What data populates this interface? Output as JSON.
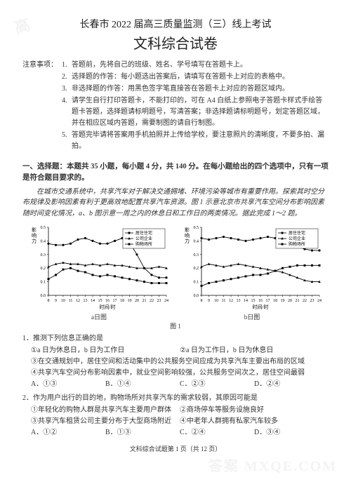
{
  "watermark_tl": "高",
  "watermark_br": "答案 MXQE.COM",
  "title_line1": "长春市 2022 届高三质量监测（三）线上考试",
  "title_line2": "文科综合试卷",
  "notice_label": "注意事项：",
  "notice_items": [
    "答题前，先将自己的班级、姓名、学号填写在答题卡上。",
    "选择题的作答：每小题选出答案后，请填写在答题卡上对应的表格中。",
    "非选择题的作答：用黑色签字笔直接答在答题卡上对应的答题区域内。",
    "请学生自行打印答题卡，不能打印的，可在 A4 白纸上参照电子答题卡样式手绘答题卡答题，选择题请标明题号，写清答案；非选择题请标明题号，划定答题区域，并在相应区域内答题，需要制图的请自行制图。",
    "答题完毕请将答案用手机拍照并上传给学校，要注意照片的清晰度，不要多拍、漏拍。"
  ],
  "section1_head": "一、选择题：本题共 35 小题，每小题 4 分，共 140 分。在每小题给出的四个选项中，只有一项是符合题目要求的。",
  "passage": "在城市交通系统中，共享汽车对于解决交通拥堵、环境污染等城市有重要作用。探索其时空分布规律及影响因素有利于更高效地配置共享汽车资源。图 1 示意北京市共享汽车空间分布影响因素随时间变化情况，a、b 图示意一周之内的休息日和工作日的两类情况。据此完成 1～2 题。",
  "chart": {
    "ylabel": "影响力",
    "xlabel": "时间/时",
    "x_ticks": [
      8,
      9,
      10,
      11,
      12,
      13,
      14,
      15,
      16,
      17,
      18,
      19,
      20,
      21,
      22,
      23,
      24
    ],
    "y_ticks": [
      0,
      0.1,
      0.2,
      0.3,
      0.4,
      0.5
    ],
    "legend": [
      "居住住宅",
      "公司企业",
      "购物场所"
    ],
    "colors": {
      "line": "#000000",
      "bg": "#ffffff",
      "grid": "#aaaaaa"
    },
    "markers": [
      "circle",
      "triangle",
      "square"
    ],
    "a": {
      "residence": [
        0.38,
        0.37,
        0.37,
        0.38,
        0.41,
        0.42,
        0.4,
        0.38,
        0.38,
        0.4,
        0.42,
        0.39,
        0.3,
        0.2,
        0.15,
        0.13,
        0.13
      ],
      "company": [
        0.21,
        0.23,
        0.24,
        0.23,
        0.23,
        0.22,
        0.23,
        0.22,
        0.23,
        0.22,
        0.22,
        0.21,
        0.2,
        0.2,
        0.2,
        0.21,
        0.2
      ],
      "shopping": [
        0.12,
        0.15,
        0.19,
        0.2,
        0.18,
        0.17,
        0.15,
        0.14,
        0.15,
        0.14,
        0.13,
        0.12,
        0.11,
        0.1,
        0.09,
        0.09,
        0.09
      ]
    },
    "b": {
      "residence": [
        0.42,
        0.41,
        0.42,
        0.43,
        0.42,
        0.41,
        0.4,
        0.41,
        0.42,
        0.43,
        0.42,
        0.4,
        0.38,
        0.36,
        0.34,
        0.33,
        0.33
      ],
      "company": [
        0.21,
        0.23,
        0.22,
        0.21,
        0.22,
        0.23,
        0.22,
        0.21,
        0.2,
        0.19,
        0.18,
        0.17,
        0.15,
        0.13,
        0.11,
        0.1,
        0.1
      ],
      "shopping": [
        0.07,
        0.09,
        0.1,
        0.11,
        0.12,
        0.13,
        0.14,
        0.15,
        0.15,
        0.16,
        0.18,
        0.2,
        0.21,
        0.22,
        0.22,
        0.22,
        0.22
      ]
    },
    "caption_a": "a日图",
    "caption_b": "b日图",
    "caption_mid": "图 1"
  },
  "q1": {
    "stem": "1．推测下列信息正确的是",
    "opts": [
      "①a 日为休息日，b 日为工作日",
      "②a 日为工作日，b 日为休息日",
      "③在交通规划中，居住空间和活动集中的公共服务空间应成为共享汽车主要出布局的区域",
      "④共享汽车空间分布影响因素中，就业空间影响较强，公共服务空间次之，居住空间最弱"
    ],
    "choices": [
      "A．①③",
      "B．①④",
      "C．②③",
      "D．②④"
    ]
  },
  "q2": {
    "stem": "2．作为用户出行的目的地，购物场所对共享汽车的需求较弱，其原因可能是",
    "opts": [
      "①年轻化的购物人群是共享汽车主要用户群体",
      "②商场停车等服务设施良好",
      "③共享汽车租赁公司主要分布于大型商场附近",
      "④中老年人群拥有私家汽车较多"
    ],
    "choices": [
      "A．①②",
      "B．①③",
      "C．②④",
      "D．③④"
    ]
  },
  "footer": "文科综合试题第 1 页（共 12 页）"
}
